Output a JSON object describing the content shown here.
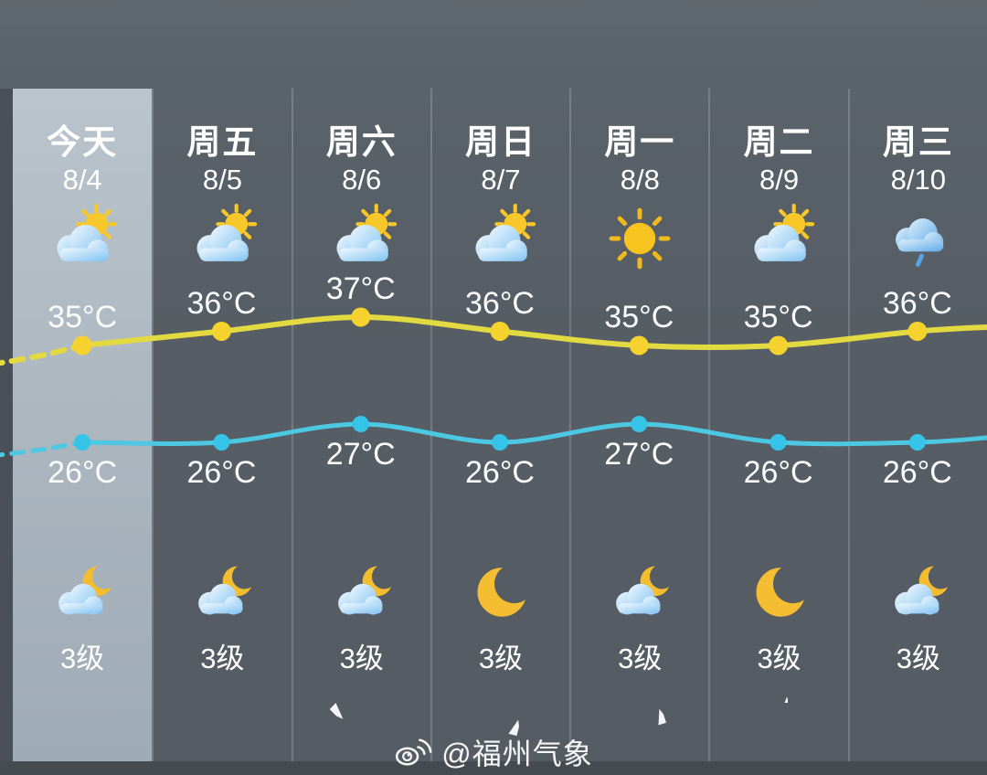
{
  "meta": {
    "watermark": "@福州气象",
    "watermark_icon": "weibo-icon"
  },
  "colors": {
    "background": "#565d64",
    "today_highlight": "#aab5be",
    "high_line": "#e3da41",
    "high_dot": "#f6d22e",
    "low_line": "#4cc8e2",
    "low_dot": "#35c4e8",
    "text": "#ffffff"
  },
  "chart_data": {
    "type": "line",
    "categories": [
      "今天",
      "周五",
      "周六",
      "周日",
      "周一",
      "周二",
      "周三"
    ],
    "x_dates": [
      "8/4",
      "8/5",
      "8/6",
      "8/7",
      "8/8",
      "8/9",
      "8/10"
    ],
    "series": [
      {
        "name": "high",
        "unit": "°C",
        "color": "#e3da41",
        "values": [
          35,
          36,
          37,
          36,
          35,
          35,
          36
        ]
      },
      {
        "name": "low",
        "unit": "°C",
        "color": "#4cc8e2",
        "values": [
          26,
          26,
          27,
          26,
          27,
          26,
          26
        ]
      }
    ],
    "leading_dashed_from_left_edge": true,
    "grid": false,
    "legend": "none"
  },
  "days": [
    {
      "name": "今天",
      "date": "8/4",
      "day_icon": "sun-cloud",
      "night_icon": "moon-cloud",
      "high": "35°C",
      "low": "26°C",
      "wind": "3级",
      "arrow_rotation": null,
      "arrow_size": 0,
      "highlight": true
    },
    {
      "name": "周五",
      "date": "8/5",
      "day_icon": "sun-cloud",
      "night_icon": "moon-cloud",
      "high": "36°C",
      "low": "26°C",
      "wind": "3级",
      "arrow_rotation": null,
      "arrow_size": 0,
      "highlight": false
    },
    {
      "name": "周六",
      "date": "8/6",
      "day_icon": "sun-cloud",
      "night_icon": "moon-cloud",
      "high": "37°C",
      "low": "27°C",
      "wind": "3级",
      "arrow_rotation": 135,
      "arrow_size": 50,
      "highlight": false
    },
    {
      "name": "周日",
      "date": "8/7",
      "day_icon": "sun-cloud",
      "night_icon": "moon",
      "high": "36°C",
      "low": "26°C",
      "wind": "3级",
      "arrow_rotation": 14,
      "arrow_size": 48,
      "highlight": false
    },
    {
      "name": "周一",
      "date": "8/8",
      "day_icon": "sun",
      "night_icon": "moon-cloud",
      "high": "35°C",
      "low": "27°C",
      "wind": "3级",
      "arrow_rotation": -18,
      "arrow_size": 46,
      "highlight": false
    },
    {
      "name": "周二",
      "date": "8/9",
      "day_icon": "sun-cloud",
      "night_icon": "moon",
      "high": "35°C",
      "low": "26°C",
      "wind": "3级",
      "arrow_rotation": 0,
      "arrow_size": 18,
      "highlight": false
    },
    {
      "name": "周三",
      "date": "8/10",
      "day_icon": "rain-cloud",
      "night_icon": "moon-cloud",
      "high": "36°C",
      "low": "26°C",
      "wind": "3级",
      "arrow_rotation": null,
      "arrow_size": 0,
      "highlight": false
    }
  ]
}
